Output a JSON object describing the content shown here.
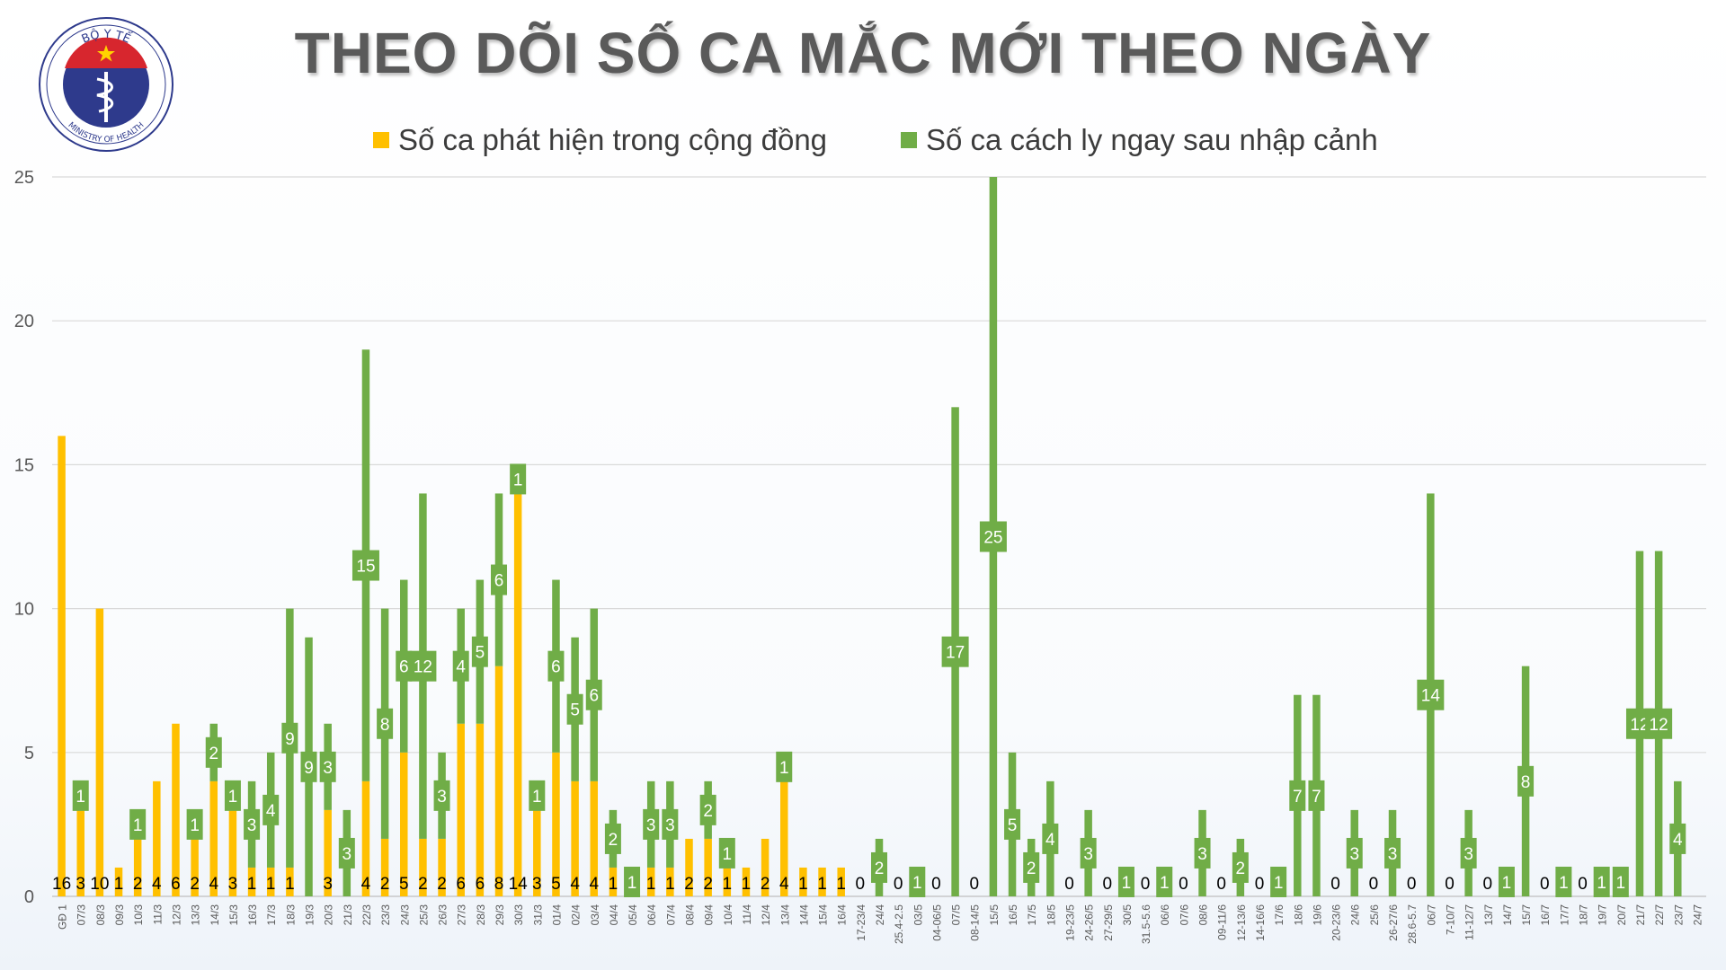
{
  "header": {
    "title": "THEO DÕI SỐ CA MẮC MỚI THEO NGÀY",
    "logo_top_text": "BỘ Y TẾ",
    "logo_bottom_text": "MINISTRY OF HEALTH"
  },
  "colors": {
    "community": "#FFC000",
    "quarantine": "#70AD47",
    "label_text": "#ffffff",
    "axis_text": "#595959",
    "grid": "#d9d9d9"
  },
  "chart_data": {
    "type": "bar",
    "stacked": true,
    "title": "THEO DÕI SỐ CA MẮC MỚI THEO NGÀY",
    "ylim": [
      0,
      25
    ],
    "yticks": [
      0,
      5,
      10,
      15,
      20,
      25
    ],
    "grid": true,
    "legend_position": "top",
    "categories": [
      "GĐ 1",
      "07/3",
      "08/3",
      "09/3",
      "10/3",
      "11/3",
      "12/3",
      "13/3",
      "14/3",
      "15/3",
      "16/3",
      "17/3",
      "18/3",
      "19/3",
      "20/3",
      "21/3",
      "22/3",
      "23/3",
      "24/3",
      "25/3",
      "26/3",
      "27/3",
      "28/3",
      "29/3",
      "30/3",
      "31/3",
      "01/4",
      "02/4",
      "03/4",
      "04/4",
      "05/4",
      "06/4",
      "07/4",
      "08/4",
      "09/4",
      "10/4",
      "11/4",
      "12/4",
      "13/4",
      "14/4",
      "15/4",
      "16/4",
      "17-23/4",
      "24/4",
      "25.4-2.5",
      "03/5",
      "04-06/5",
      "07/5",
      "08-14/5",
      "15/5",
      "16/5",
      "17/5",
      "18/5",
      "19-23/5",
      "24-26/5",
      "27-29/5",
      "30/5",
      "31.5-5.6",
      "06/6",
      "07/6",
      "08/6",
      "09-11/6",
      "12-13/6",
      "14-16/6",
      "17/6",
      "18/6",
      "19/6",
      "20-23/6",
      "24/6",
      "25/6",
      "26-27/6",
      "28.6-5.7",
      "06/7",
      "7-10/7",
      "11-12/7",
      "13/7",
      "14/7",
      "15/7",
      "16/7",
      "17/7",
      "18/7",
      "19/7",
      "20/7",
      "21/7",
      "22/7",
      "23/7",
      "24/7"
    ],
    "series": [
      {
        "name": "Số ca phát hiện trong cộng đồng",
        "values": [
          16,
          3,
          10,
          1,
          2,
          4,
          6,
          2,
          4,
          3,
          1,
          1,
          1,
          0,
          3,
          0,
          4,
          2,
          5,
          2,
          2,
          6,
          6,
          8,
          14,
          3,
          5,
          4,
          4,
          1,
          0,
          1,
          1,
          2,
          2,
          1,
          1,
          2,
          4,
          1,
          1,
          1,
          0,
          0,
          0,
          0,
          0,
          0,
          0,
          0,
          0,
          0,
          0,
          0,
          0,
          0,
          0,
          0,
          0,
          0,
          0,
          0,
          0,
          0,
          0,
          0,
          0,
          0,
          0,
          0,
          0,
          0,
          0,
          0,
          0,
          0,
          0,
          0,
          0,
          0,
          0,
          0,
          0,
          0,
          0,
          0,
          0
        ]
      },
      {
        "name": "Số ca cách ly ngay sau nhập cảnh",
        "values": [
          0,
          1,
          0,
          0,
          1,
          0,
          0,
          1,
          2,
          1,
          3,
          4,
          9,
          9,
          3,
          3,
          15,
          8,
          6,
          12,
          3,
          4,
          5,
          6,
          1,
          1,
          6,
          5,
          6,
          2,
          1,
          3,
          3,
          0,
          2,
          1,
          0,
          0,
          1,
          0,
          0,
          0,
          0,
          2,
          0,
          1,
          0,
          17,
          0,
          25,
          5,
          2,
          4,
          0,
          3,
          0,
          1,
          0,
          1,
          0,
          3,
          0,
          2,
          0,
          1,
          7,
          7,
          0,
          3,
          0,
          3,
          0,
          14,
          0,
          3,
          0,
          1,
          8,
          0,
          1,
          0,
          1,
          1,
          12,
          12,
          4,
          0
        ]
      }
    ],
    "point_labels": [
      "16",
      "3",
      "10",
      "1",
      "2",
      "4",
      "6",
      "2",
      "4",
      "3",
      "1",
      "1",
      "1",
      "",
      "3",
      "",
      "4",
      "2",
      "5",
      "2",
      "2",
      "6",
      "6",
      "8",
      "14",
      "3",
      "5",
      "4",
      "4",
      "1",
      "",
      "1",
      "1",
      "2",
      "2",
      "1",
      "1",
      "2",
      "4",
      "1",
      "1",
      "1",
      "0",
      "",
      "0",
      "",
      "0",
      "",
      "0",
      "",
      "",
      "",
      "",
      "0",
      "",
      "0",
      "",
      "0",
      "",
      "0",
      "",
      "0",
      "",
      "0",
      "",
      "",
      "",
      "0",
      "",
      "0",
      "",
      "0",
      "",
      "0",
      "",
      "0",
      "",
      "",
      "0",
      "",
      "0",
      "",
      "",
      "",
      "",
      "",
      ""
    ],
    "quarantine_labels": [
      "",
      "1",
      "",
      "",
      "1",
      "",
      "",
      "1",
      "2",
      "1",
      "3",
      "4",
      "9",
      "9",
      "3",
      "3",
      "15",
      "8",
      "6",
      "12",
      "3",
      "4",
      "5",
      "6",
      "1",
      "1",
      "6",
      "5",
      "6",
      "2",
      "1",
      "3",
      "3",
      "",
      "2",
      "1",
      "",
      "",
      "1",
      "",
      "",
      "",
      "",
      "2",
      "",
      "1",
      "",
      "17",
      "",
      "25",
      "5",
      "2",
      "4",
      "",
      "3",
      "",
      "1",
      "",
      "1",
      "",
      "3",
      "",
      "2",
      "",
      "1",
      "7",
      "7",
      "",
      "3",
      "",
      "3",
      "",
      "14",
      "",
      "3",
      "",
      "1",
      "8",
      "",
      "1",
      "",
      "1",
      "1",
      "12",
      "12",
      "4",
      ""
    ]
  }
}
